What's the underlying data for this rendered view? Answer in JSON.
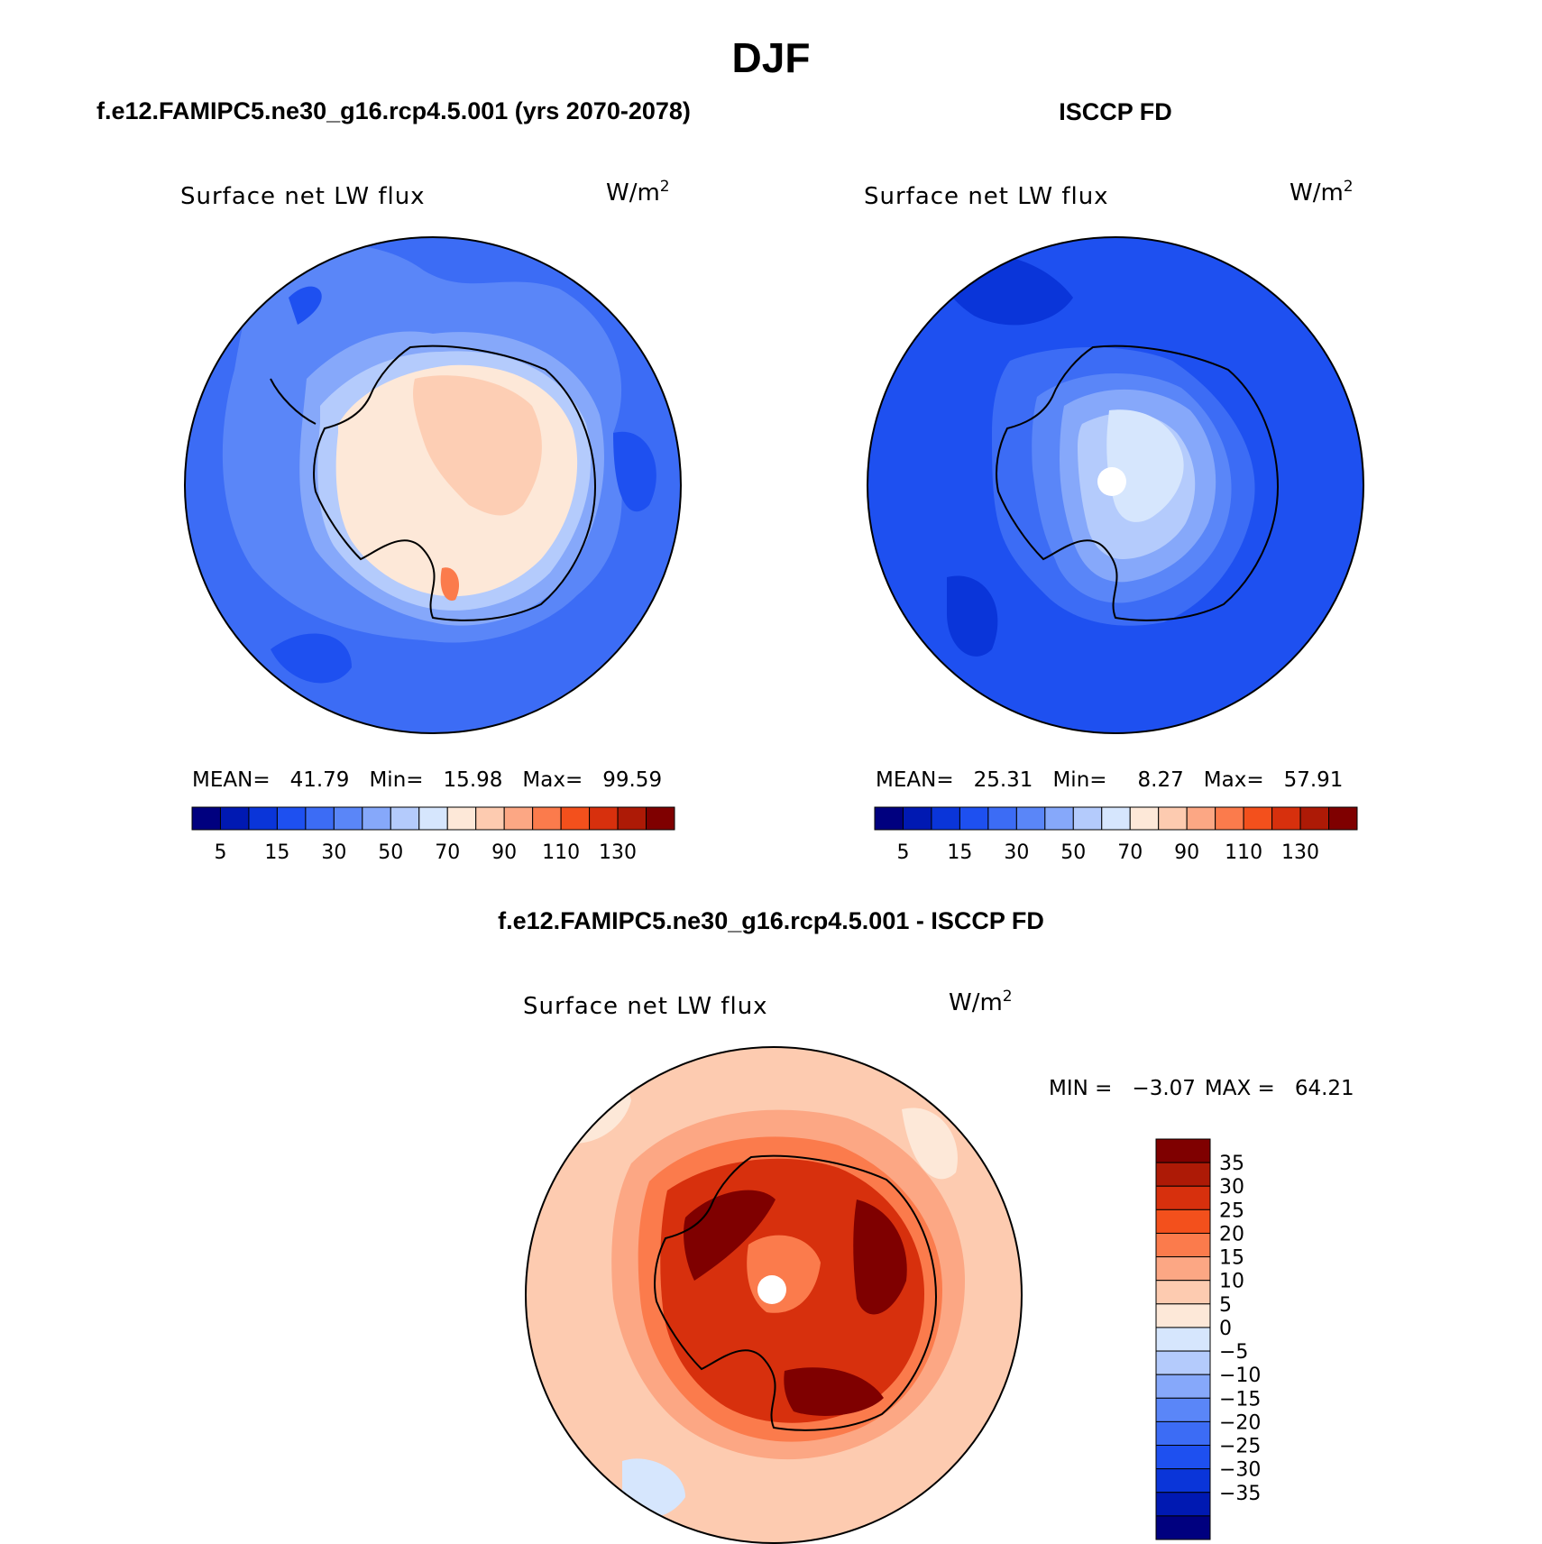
{
  "figure": {
    "season": "DJF"
  },
  "panel_left": {
    "title": "f.e12.FAMIPC5.ne30_g16.rcp4.5.001 (yrs 2070-2078)",
    "variable": "Surface net LW flux",
    "units": "W/m",
    "units_sup": "2",
    "stats": {
      "mean_label": "MEAN=",
      "mean_value": "41.79",
      "min_label": "Min=",
      "min_value": "15.98",
      "max_label": "Max=",
      "max_value": "99.59"
    }
  },
  "panel_right": {
    "title": "ISCCP FD",
    "variable": "Surface net LW flux",
    "units": "W/m",
    "units_sup": "2",
    "stats": {
      "mean_label": "MEAN=",
      "mean_value": "25.31",
      "min_label": "Min=",
      "min_value": "8.27",
      "max_label": "Max=",
      "max_value": "57.91"
    }
  },
  "panel_diff": {
    "title": "f.e12.FAMIPC5.ne30_g16.rcp4.5.001 - ISCCP FD",
    "variable": "Surface net LW flux",
    "units": "W/m",
    "units_sup": "2",
    "stats": {
      "min_label": "MIN =",
      "min_value": "−3.07",
      "max_label": "MAX =",
      "max_value": "64.21"
    }
  },
  "colorbar_abs": {
    "labels": [
      "5",
      "15",
      "30",
      "50",
      "70",
      "90",
      "110",
      "130"
    ],
    "colors": [
      "#00007f",
      "#0019b2",
      "#0a35d9",
      "#1e50f0",
      "#3c6cf5",
      "#5a86f8",
      "#86a8fa",
      "#b4cbfc",
      "#d6e6fd",
      "#fde8d8",
      "#fdcbb0",
      "#fca784",
      "#fb7b4c",
      "#f3501c",
      "#d7300d",
      "#ad1a06",
      "#7f0000"
    ]
  },
  "colorbar_diff": {
    "labels": [
      "35",
      "30",
      "25",
      "20",
      "15",
      "10",
      "5",
      "0",
      "−5",
      "−10",
      "−15",
      "−20",
      "−25",
      "−30",
      "−35"
    ],
    "colors": [
      "#7f0000",
      "#ad1a06",
      "#d7300d",
      "#f3501c",
      "#fb7b4c",
      "#fca784",
      "#fdcbb0",
      "#fde8d8",
      "#d6e6fd",
      "#b4cbfc",
      "#86a8fa",
      "#5a86f8",
      "#3c6cf5",
      "#1e50f0",
      "#0a35d9",
      "#0019b2",
      "#00007f"
    ]
  }
}
